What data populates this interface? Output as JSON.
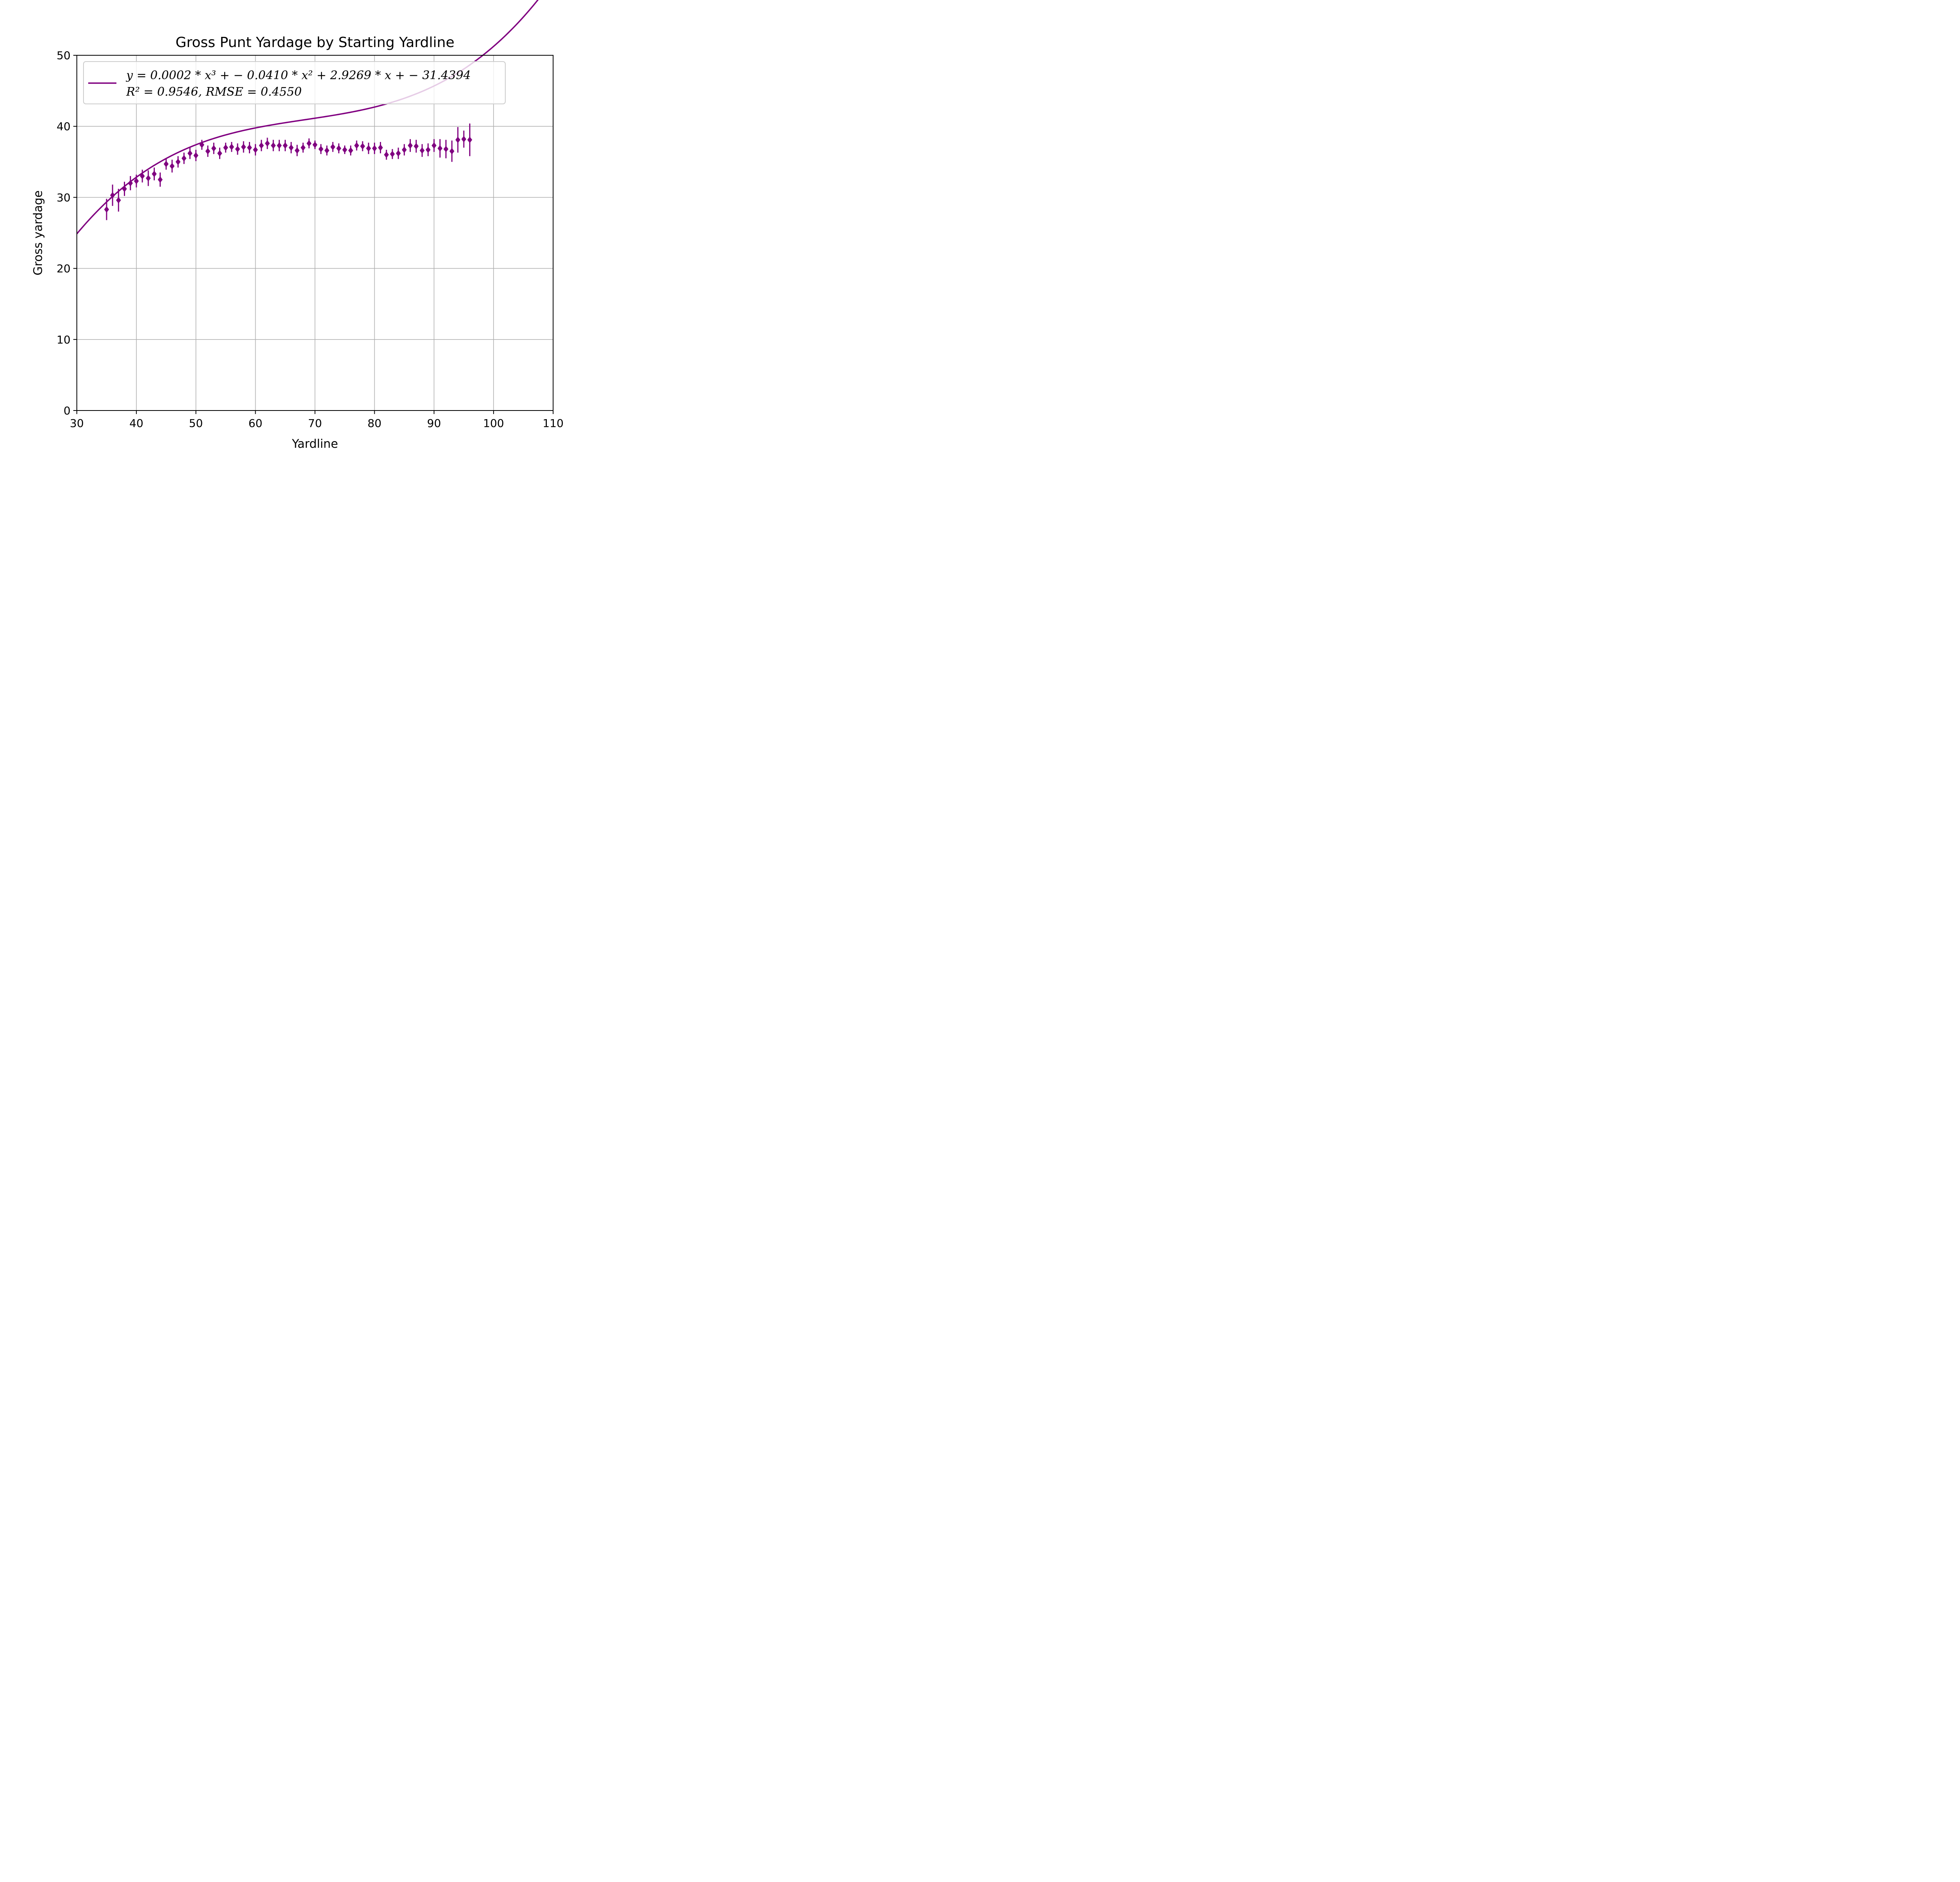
{
  "chart_data": {
    "type": "scatter",
    "title": "Gross Punt Yardage by Starting Yardline",
    "xlabel": "Yardline",
    "ylabel": "Gross yardage",
    "xlim": [
      30,
      110
    ],
    "ylim": [
      0,
      50
    ],
    "xticks": [
      "30",
      "40",
      "50",
      "60",
      "70",
      "80",
      "90",
      "100",
      "110"
    ],
    "yticks": [
      "0",
      "10",
      "20",
      "30",
      "40",
      "50"
    ],
    "grid": true,
    "legend_position": "top-left",
    "color": "#800080",
    "legend": {
      "line1": "y = 0.0002 * x³ + − 0.0410 * x² + 2.9269 * x + − 31.4394",
      "line2": "R² = 0.9546, RMSE = 0.4550"
    },
    "fit": {
      "coefficients": [
        0.0002,
        -0.041,
        2.9269,
        -31.4394
      ],
      "x_range": [
        30,
        110
      ]
    },
    "series": [
      {
        "x": [
          35,
          36,
          37,
          38,
          39,
          40,
          41,
          42,
          43,
          44,
          45,
          46,
          47,
          48,
          49,
          50,
          51,
          52,
          53,
          54,
          55,
          56,
          57,
          58,
          59,
          60,
          61,
          62,
          63,
          64,
          65,
          66,
          67,
          68,
          69,
          70,
          71,
          72,
          73,
          74,
          75,
          76,
          77,
          78,
          79,
          80,
          81,
          82,
          83,
          84,
          85,
          86,
          87,
          88,
          89,
          90,
          91,
          92,
          93,
          94,
          95,
          96
        ],
        "y": [
          28.3,
          30.3,
          29.6,
          31.2,
          32.0,
          32.3,
          33.0,
          32.7,
          33.3,
          32.5,
          34.7,
          34.4,
          35.0,
          35.5,
          36.2,
          35.9,
          37.4,
          36.5,
          36.9,
          36.2,
          37.0,
          37.1,
          36.8,
          37.1,
          37.0,
          36.7,
          37.3,
          37.6,
          37.3,
          37.3,
          37.3,
          37.0,
          36.6,
          37.0,
          37.6,
          37.4,
          36.8,
          36.6,
          37.1,
          36.9,
          36.7,
          36.6,
          37.3,
          37.2,
          36.9,
          36.9,
          37.0,
          36.0,
          36.1,
          36.2,
          36.7,
          37.3,
          37.2,
          36.6,
          36.7,
          37.3,
          36.9,
          36.8,
          36.5,
          38.1,
          38.2,
          38.1
        ],
        "yerr": [
          1.5,
          1.5,
          1.6,
          1.0,
          1.0,
          0.9,
          0.9,
          1.1,
          0.9,
          1.0,
          0.8,
          0.9,
          0.8,
          0.8,
          0.8,
          0.8,
          0.7,
          0.8,
          0.8,
          0.8,
          0.7,
          0.7,
          0.8,
          0.8,
          0.8,
          0.8,
          0.8,
          0.8,
          0.8,
          0.8,
          0.8,
          0.8,
          0.8,
          0.7,
          0.7,
          0.6,
          0.7,
          0.7,
          0.7,
          0.7,
          0.6,
          0.7,
          0.7,
          0.7,
          0.8,
          0.8,
          0.8,
          0.7,
          0.7,
          0.8,
          0.8,
          0.9,
          0.9,
          0.9,
          0.9,
          0.9,
          1.3,
          1.3,
          1.5,
          1.8,
          1.2,
          2.3
        ]
      }
    ]
  }
}
